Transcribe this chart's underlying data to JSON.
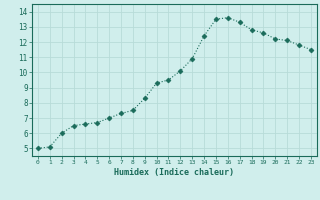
{
  "x": [
    0,
    1,
    2,
    3,
    4,
    5,
    6,
    7,
    8,
    9,
    10,
    11,
    12,
    13,
    14,
    15,
    16,
    17,
    18,
    19,
    20,
    21,
    22,
    23
  ],
  "y": [
    5.0,
    5.1,
    6.0,
    6.5,
    6.6,
    6.7,
    7.0,
    7.3,
    7.5,
    8.3,
    9.3,
    9.5,
    10.1,
    10.9,
    12.4,
    13.5,
    13.6,
    13.3,
    12.8,
    12.6,
    12.2,
    12.1,
    11.8,
    11.5
  ],
  "xlabel": "Humidex (Indice chaleur)",
  "line_color": "#1a6b5a",
  "marker": "D",
  "marker_size": 2.5,
  "bg_color": "#d0eeec",
  "grid_color": "#b8dbd8",
  "tick_color": "#1a6b5a",
  "label_color": "#1a6b5a",
  "xlim": [
    -0.5,
    23.5
  ],
  "ylim": [
    4.5,
    14.5
  ],
  "yticks": [
    5,
    6,
    7,
    8,
    9,
    10,
    11,
    12,
    13,
    14
  ],
  "xticks": [
    0,
    1,
    2,
    3,
    4,
    5,
    6,
    7,
    8,
    9,
    10,
    11,
    12,
    13,
    14,
    15,
    16,
    17,
    18,
    19,
    20,
    21,
    22,
    23
  ]
}
